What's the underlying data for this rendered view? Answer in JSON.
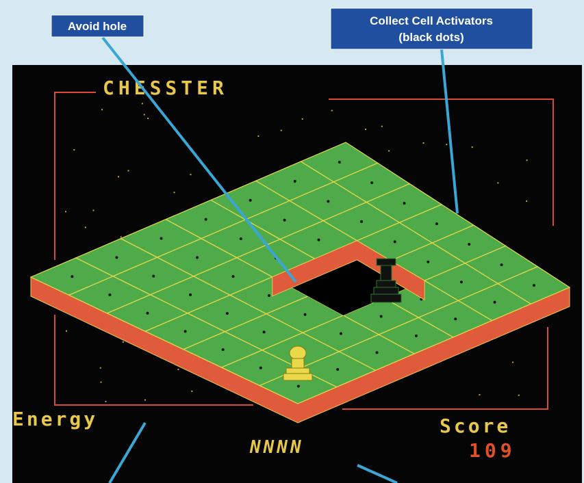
{
  "callouts": {
    "hole": "Avoid hole",
    "activators": [
      "Collect Cell Activators",
      "(black dots)"
    ]
  },
  "game": {
    "title": "CHESSTER",
    "energy_label": "Energy",
    "energy": "NNNN",
    "score_label": "Score",
    "score": 109
  }
}
